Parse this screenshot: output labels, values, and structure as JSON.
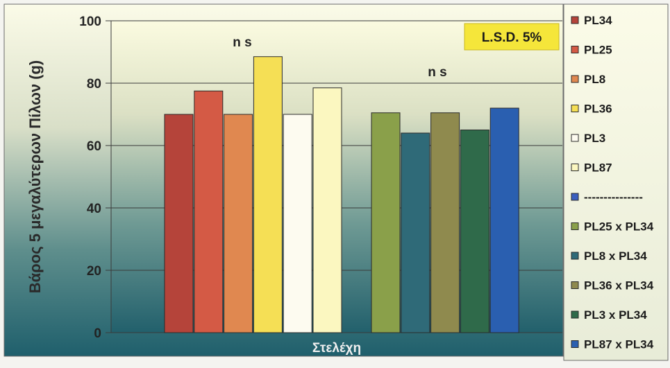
{
  "chart_data": {
    "type": "bar",
    "title": "",
    "xlabel": "Στελέχη",
    "ylabel": "Βάρος 5 μεγαλύτερων Πίλων (g)",
    "ylim": [
      0,
      100
    ],
    "yticks": [
      0,
      20,
      40,
      60,
      80,
      100
    ],
    "grid": true,
    "legend_position": "right",
    "annotations": [
      "n s",
      "n s",
      "L.S.D. 5%"
    ],
    "series": [
      {
        "name": "PL34",
        "value": 70,
        "color": "#b5443a"
      },
      {
        "name": "PL25",
        "value": 77.5,
        "color": "#d45a45"
      },
      {
        "name": "PL8",
        "value": 70,
        "color": "#e08850"
      },
      {
        "name": "PL36",
        "value": 88.5,
        "color": "#f5df55"
      },
      {
        "name": "PL3",
        "value": 70,
        "color": "#fdfbf0"
      },
      {
        "name": "PL87",
        "value": 78.5,
        "color": "#fbf7c0"
      },
      {
        "name": "---------------",
        "value": null,
        "color": "#3a5fbf"
      },
      {
        "name": "PL25 x PL34",
        "value": 70.5,
        "color": "#8aa04a"
      },
      {
        "name": "PL8 x PL34",
        "value": 64,
        "color": "#2f6a78"
      },
      {
        "name": "PL36 x PL34",
        "value": 70.5,
        "color": "#8f8a4e"
      },
      {
        "name": "PL3 x PL34",
        "value": 65,
        "color": "#2f6a4a"
      },
      {
        "name": "PL87 x PL34",
        "value": 72,
        "color": "#2a5fb0"
      }
    ]
  }
}
